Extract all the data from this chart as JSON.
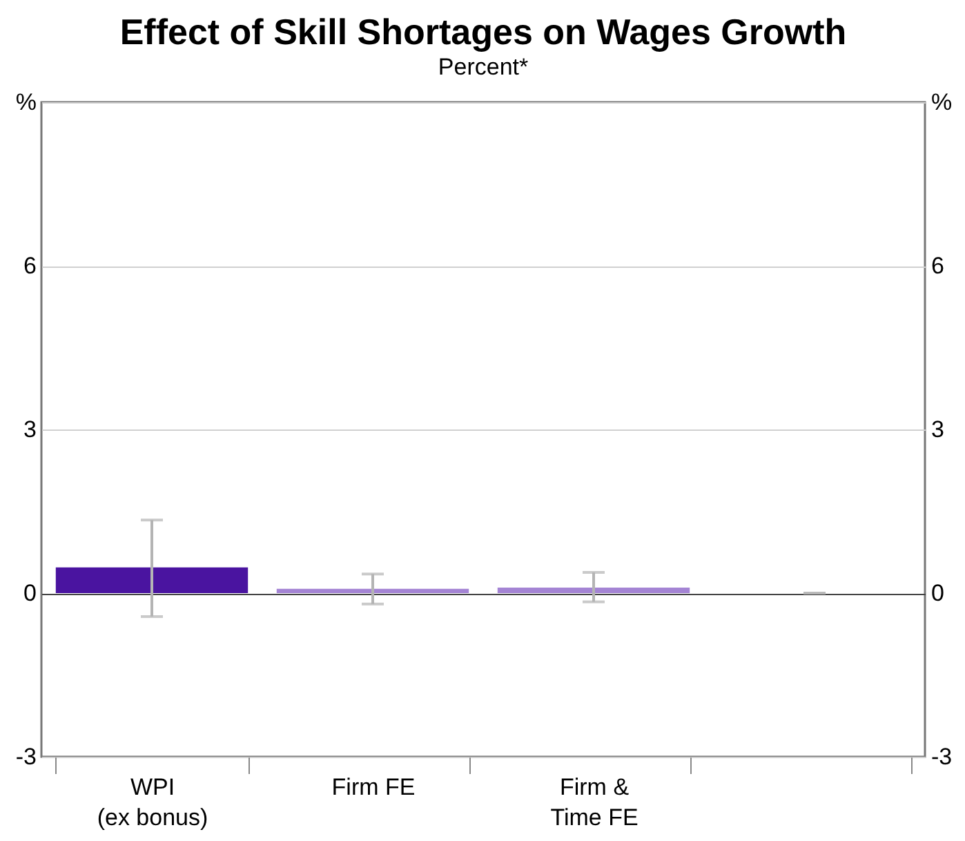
{
  "chart_data": {
    "type": "bar",
    "title": "Effect of Skill Shortages on Wages Growth",
    "subtitle": "Percent*",
    "categories": [
      "WPI (ex bonus)",
      "Firm FE",
      "Firm & Time FE",
      null
    ],
    "series": [
      {
        "color": null,
        "values": [
          0.47,
          0.08,
          0.1,
          0
        ],
        "errors": [
          [
            -0.43,
            1.34
          ],
          [
            -0.2,
            0.35
          ],
          [
            -0.16,
            0.38
          ],
          [
            0,
            0
          ]
        ]
      }
    ],
    "colors": [
      "#4a14a0",
      "#a484d4",
      "#a484d4",
      "#b4b4b4"
    ],
    "ylim": [
      -3,
      9
    ],
    "yticks": [
      -3,
      0,
      3,
      6,
      {
        "value": 9,
        "label": "%"
      }
    ],
    "y2lim": [
      -3,
      9
    ],
    "y2ticks": [
      -3,
      0,
      3,
      6,
      {
        "value": 9,
        "label": "%"
      }
    ],
    "grid": "y"
  }
}
